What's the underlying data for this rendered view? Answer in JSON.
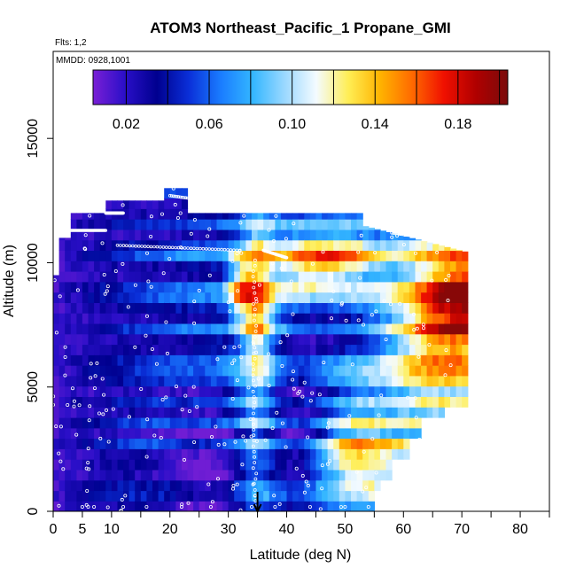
{
  "chart_data": {
    "type": "heatmap",
    "title": "ATOM3 Northeast_Pacific_1 Propane_GMI",
    "flights_label": "Flts: 1,2",
    "dates_label": "MMDD: 0928,1001",
    "xlabel": "Latitude (deg N)",
    "ylabel": "Altitude (m)",
    "xlim": [
      0,
      85
    ],
    "ylim": [
      0,
      18500
    ],
    "x_ticks": [
      0,
      5,
      10,
      20,
      30,
      40,
      50,
      60,
      70,
      80
    ],
    "y_ticks": [
      0,
      5000,
      10000,
      15000
    ],
    "colorbar": {
      "min": 0.004,
      "max": 0.204,
      "tick_values": [
        0.02,
        0.06,
        0.1,
        0.14,
        0.18
      ],
      "tick_labels": [
        "0.02",
        "0.06",
        "0.10",
        "0.14",
        "0.18"
      ],
      "colors": [
        "#7a1fd6",
        "#2a0fc8",
        "#00008f",
        "#0a2fd8",
        "#1a7cff",
        "#33b6ff",
        "#9ad8ff",
        "#f4fbff",
        "#ffee55",
        "#ffb300",
        "#ff6a00",
        "#f01000",
        "#b00000",
        "#7a0b0b"
      ]
    },
    "marker": {
      "latitude": 35,
      "symbol": "down-arrow"
    },
    "grid": false
  }
}
